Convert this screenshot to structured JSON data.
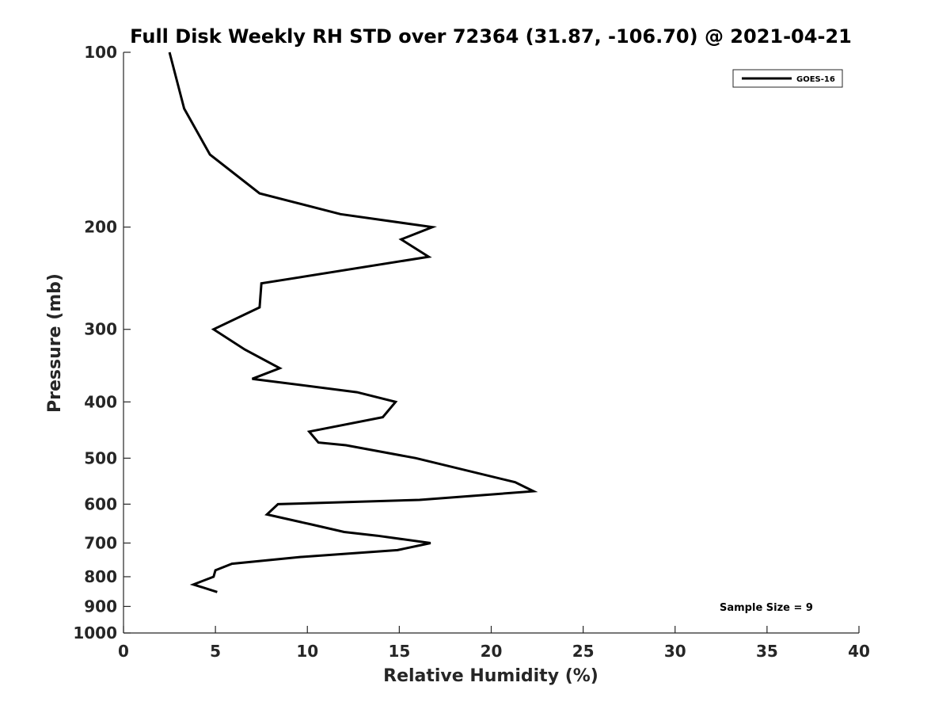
{
  "chart_data": {
    "type": "line",
    "title": "Full Disk Weekly RH STD over 72364 (31.87, -106.70) @ 2021-04-21",
    "xlabel": "Relative Humidity (%)",
    "ylabel": "Pressure (mb)",
    "xlim": [
      0,
      40
    ],
    "ylim": [
      100,
      1000
    ],
    "y_scale": "log",
    "y_reversed": true,
    "x_ticks": [
      0,
      5,
      10,
      15,
      20,
      25,
      30,
      35,
      40
    ],
    "y_ticks": [
      100,
      200,
      300,
      400,
      500,
      600,
      700,
      800,
      900,
      1000
    ],
    "grid": false,
    "legend_position": "top-right",
    "annotation": "Sample Size = 9",
    "series": [
      {
        "name": "GOES-16",
        "color": "#000000",
        "points": [
          {
            "x": 2.5,
            "y": 100
          },
          {
            "x": 3.3,
            "y": 125
          },
          {
            "x": 4.7,
            "y": 150
          },
          {
            "x": 7.4,
            "y": 175
          },
          {
            "x": 11.8,
            "y": 190
          },
          {
            "x": 16.8,
            "y": 200
          },
          {
            "x": 15.1,
            "y": 210
          },
          {
            "x": 16.6,
            "y": 225
          },
          {
            "x": 7.5,
            "y": 250
          },
          {
            "x": 7.4,
            "y": 275
          },
          {
            "x": 4.9,
            "y": 300
          },
          {
            "x": 6.6,
            "y": 325
          },
          {
            "x": 8.5,
            "y": 350
          },
          {
            "x": 7.0,
            "y": 365
          },
          {
            "x": 12.7,
            "y": 385
          },
          {
            "x": 14.8,
            "y": 400
          },
          {
            "x": 14.1,
            "y": 425
          },
          {
            "x": 10.1,
            "y": 450
          },
          {
            "x": 10.6,
            "y": 470
          },
          {
            "x": 12.1,
            "y": 475
          },
          {
            "x": 15.9,
            "y": 500
          },
          {
            "x": 21.3,
            "y": 550
          },
          {
            "x": 22.3,
            "y": 570
          },
          {
            "x": 16.1,
            "y": 590
          },
          {
            "x": 8.4,
            "y": 600
          },
          {
            "x": 7.8,
            "y": 625
          },
          {
            "x": 10.2,
            "y": 650
          },
          {
            "x": 12.0,
            "y": 670
          },
          {
            "x": 13.8,
            "y": 680
          },
          {
            "x": 16.7,
            "y": 700
          },
          {
            "x": 14.9,
            "y": 720
          },
          {
            "x": 9.6,
            "y": 740
          },
          {
            "x": 5.9,
            "y": 760
          },
          {
            "x": 5.0,
            "y": 780
          },
          {
            "x": 4.9,
            "y": 800
          },
          {
            "x": 3.8,
            "y": 825
          },
          {
            "x": 5.1,
            "y": 850
          }
        ]
      }
    ]
  }
}
